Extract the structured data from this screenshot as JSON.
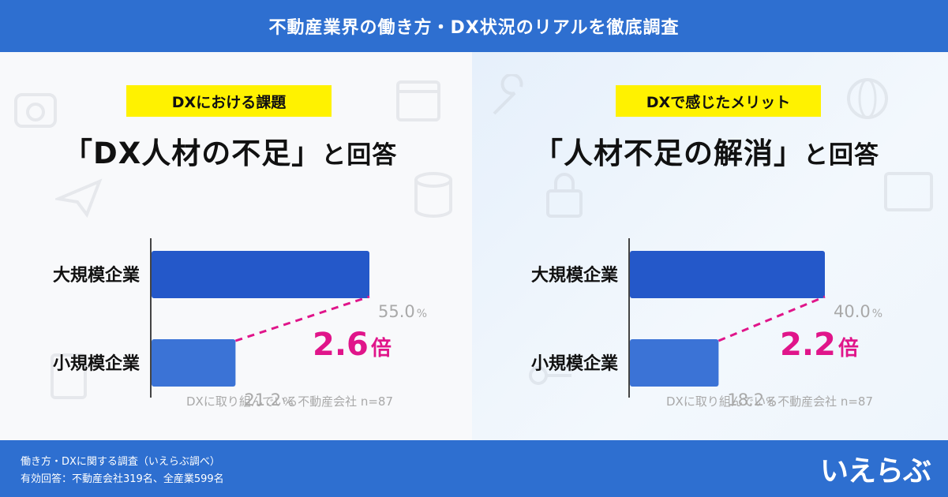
{
  "header": {
    "title": "不動産業界の働き方・DX状況のリアルを徹底調査"
  },
  "left_panel": {
    "tag": "DXにおける課題",
    "headline_main": "「DX人材の不足」",
    "headline_suffix": "と回答",
    "multiplier": {
      "value": "2.6",
      "unit": "倍"
    },
    "note": "DXに取り組んでいる不動産会社 n=87"
  },
  "right_panel": {
    "tag": "DXで感じたメリット",
    "headline_main": "「人材不足の解消」",
    "headline_suffix": "と回答",
    "multiplier": {
      "value": "2.2",
      "unit": "倍"
    },
    "note": "DXに取り組んでいる不動産会社 n=87"
  },
  "chart_data": [
    {
      "type": "bar",
      "orientation": "horizontal",
      "categories": [
        "大規模企業",
        "小規模企業"
      ],
      "values": [
        55.0,
        21.2
      ],
      "value_labels": [
        "55.0",
        "21.2"
      ],
      "unit": "%",
      "xlim": [
        0,
        70
      ],
      "grid": false,
      "colors": [
        "#2458c9",
        "#3b73d6"
      ]
    },
    {
      "type": "bar",
      "orientation": "horizontal",
      "categories": [
        "大規模企業",
        "小規模企業"
      ],
      "values": [
        40.0,
        18.2
      ],
      "value_labels": [
        "40.0",
        "18.2"
      ],
      "unit": "%",
      "xlim": [
        0,
        60
      ],
      "grid": false,
      "colors": [
        "#2458c9",
        "#3b73d6"
      ]
    }
  ],
  "colors": {
    "brand_blue": "#2e6fd0",
    "highlight_yellow": "#fff200",
    "accent_magenta": "#e0158a",
    "value_gray": "#a9a9a9"
  },
  "footer": {
    "line1": "働き方・DXに関する調査（いえらぶ調べ）",
    "line2": "有効回答：不動産会社319名、全産業599名",
    "logo_text": "いえらぶ"
  }
}
